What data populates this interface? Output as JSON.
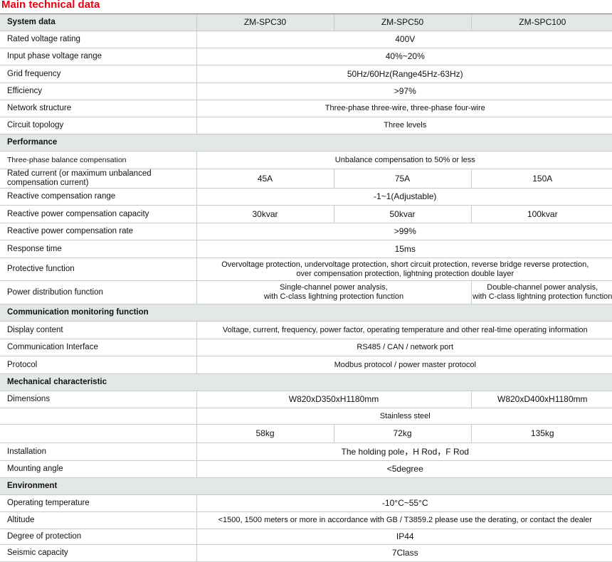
{
  "title": "Main technical data",
  "header": {
    "label": "System data",
    "models": [
      "ZM-SPC30",
      "ZM-SPC50",
      "ZM-SPC100"
    ]
  },
  "rows": [
    {
      "label": "Rated voltage rating",
      "cells": [
        {
          "text": "400V",
          "span": 3
        }
      ],
      "h": 24
    },
    {
      "label": "Input phase voltage range",
      "cells": [
        {
          "text": "40%~20%",
          "span": 3
        }
      ],
      "h": 24
    },
    {
      "label": "Grid frequency",
      "cells": [
        {
          "text": "50Hz/60Hz(Range45Hz-63Hz)",
          "span": 3
        }
      ],
      "h": 25
    },
    {
      "label": "Efficiency",
      "cells": [
        {
          "text": ">97%",
          "span": 3
        }
      ],
      "h": 24
    },
    {
      "label": "Network structure",
      "cells": [
        {
          "text": "Three-phase three-wire, three-phase four-wire",
          "span": 3,
          "small": true
        }
      ],
      "h": 24
    },
    {
      "label": "Circuit topology",
      "cells": [
        {
          "text": "Three levels",
          "span": 3,
          "small": true
        }
      ],
      "h": 24
    },
    {
      "section": "Performance",
      "h": 24
    },
    {
      "label": "Three-phase balance compensation",
      "smallLabel": true,
      "cells": [
        {
          "text": "Unbalance compensation to 50% or less",
          "span": 3,
          "small": true
        }
      ],
      "h": 25
    },
    {
      "label": "Rated current (or maximum unbalanced compensation current)",
      "cells": [
        {
          "text": "45A",
          "span": 1
        },
        {
          "text": "75A",
          "span": 1
        },
        {
          "text": "150A",
          "span": 1
        }
      ],
      "h": 27
    },
    {
      "label": "Reactive compensation range",
      "cells": [
        {
          "text": "-1~1(Adjustable)",
          "span": 3
        }
      ],
      "h": 24
    },
    {
      "label": "Reactive power compensation capacity",
      "cells": [
        {
          "text": "30kvar",
          "span": 1
        },
        {
          "text": "50kvar",
          "span": 1
        },
        {
          "text": "100kvar",
          "span": 1
        }
      ],
      "h": 25
    },
    {
      "label": "Reactive power compensation rate",
      "cells": [
        {
          "text": ">99%",
          "span": 3
        }
      ],
      "h": 24
    },
    {
      "label": "Response time",
      "cells": [
        {
          "text": "15ms",
          "span": 3
        }
      ],
      "h": 25
    },
    {
      "label": "Protective function",
      "cells": [
        {
          "text": "Overvoltage protection, undervoltage protection, short circuit protection, reverse bridge reverse protection,\nover compensation protection, lightning protection double layer",
          "span": 3,
          "small": true
        }
      ],
      "h": 32
    },
    {
      "label": "Power distribution function",
      "cells": [
        {
          "text": "Single-channel power analysis,\nwith C-class lightning protection function",
          "span": 2,
          "small": true
        },
        {
          "text": "Double-channel power analysis,\nwith C-class lightning protection function",
          "span": 1,
          "small": true
        }
      ],
      "h": 33
    },
    {
      "section": "Communication monitoring function",
      "h": 24
    },
    {
      "label": "Display content",
      "cells": [
        {
          "text": "Voltage, current, frequency, power factor, operating temperature and other real-time operating information",
          "span": 3,
          "small": true
        }
      ],
      "h": 25
    },
    {
      "label": "Communication Interface",
      "cells": [
        {
          "text": "RS485 / CAN / network port",
          "span": 3,
          "small": true
        }
      ],
      "h": 24
    },
    {
      "label": "Protocol",
      "cells": [
        {
          "text": "Modbus protocol / power master protocol",
          "span": 3,
          "small": true
        }
      ],
      "h": 25
    },
    {
      "section": "Mechanical characteristic",
      "h": 24
    },
    {
      "label": "Dimensions",
      "cells": [
        {
          "text": "W820xD350xH1180mm",
          "span": 2
        },
        {
          "text": "W820xD400xH1180mm",
          "span": 1
        }
      ],
      "h": 24
    },
    {
      "label": "",
      "cells": [
        {
          "text": "Stainless steel",
          "span": 3,
          "small": true
        }
      ],
      "h": 23
    },
    {
      "label": "",
      "cells": [
        {
          "text": "58kg",
          "span": 1
        },
        {
          "text": "72kg",
          "span": 1
        },
        {
          "text": "135kg",
          "span": 1
        }
      ],
      "h": 26
    },
    {
      "label": "Installation",
      "cells": [
        {
          "text": "The holding pole，H Rod，F Rod",
          "span": 3
        }
      ],
      "h": 25
    },
    {
      "label": "Mounting angle",
      "cells": [
        {
          "text": "<5degree",
          "span": 3
        }
      ],
      "h": 24
    },
    {
      "section": "Environment",
      "h": 24
    },
    {
      "label": "Operating temperature",
      "cells": [
        {
          "text": "-10°C~55°C",
          "span": 3
        }
      ],
      "h": 24
    },
    {
      "label": "Altitude",
      "cells": [
        {
          "text": "<1500, 1500 meters or more in accordance with GB / T3859.2 please use the derating, or contact the dealer",
          "span": 3,
          "small": true
        }
      ],
      "h": 24
    },
    {
      "label": "Degree of protection",
      "cells": [
        {
          "text": "IP44",
          "span": 3
        }
      ],
      "h": 22
    },
    {
      "label": "Seismic capacity",
      "cells": [
        {
          "text": "7Class",
          "span": 3
        }
      ],
      "h": 24
    }
  ]
}
